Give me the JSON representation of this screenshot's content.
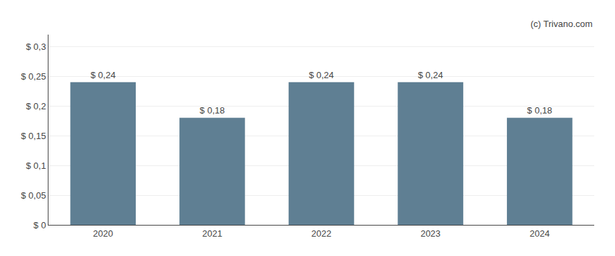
{
  "chart_data": {
    "type": "bar",
    "categories": [
      "2020",
      "2021",
      "2022",
      "2023",
      "2024"
    ],
    "values": [
      0.24,
      0.18,
      0.24,
      0.24,
      0.18
    ],
    "value_labels": [
      "$ 0,24",
      "$ 0,18",
      "$ 0,24",
      "$ 0,24",
      "$ 0,18"
    ],
    "data_labels": true,
    "color": "#5f7f93",
    "ylim": [
      0,
      0.32
    ],
    "yticks": [
      {
        "value": 0,
        "label": "$ 0"
      },
      {
        "value": 0.05,
        "label": "$ 0,05"
      },
      {
        "value": 0.1,
        "label": "$ 0,1"
      },
      {
        "value": 0.15,
        "label": "$ 0,15"
      },
      {
        "value": 0.2,
        "label": "$ 0,2"
      },
      {
        "value": 0.25,
        "label": "$ 0,25"
      },
      {
        "value": 0.3,
        "label": "$ 0,3"
      }
    ],
    "grid": true,
    "annotations": [
      "(c) Trivano.com"
    ]
  }
}
